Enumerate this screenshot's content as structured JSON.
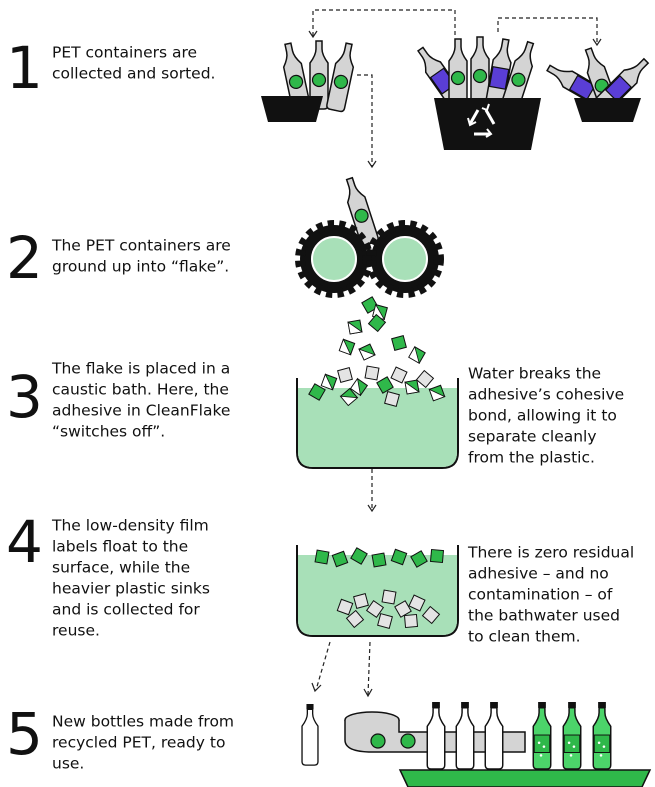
{
  "steps": [
    {
      "number": "1",
      "lines": [
        "PET containers are",
        "collected and sorted."
      ]
    },
    {
      "number": "2",
      "lines": [
        "The PET containers are",
        "ground up into “flake”."
      ]
    },
    {
      "number": "3",
      "lines": [
        "The flake is placed in a",
        "caustic bath. Here, the",
        "adhesive in CleanFlake",
        "“switches off”."
      ]
    },
    {
      "number": "4",
      "lines": [
        "The low-density film",
        "labels float to the",
        "surface, while the",
        "heavier plastic sinks",
        "and is collected for",
        "reuse."
      ]
    },
    {
      "number": "5",
      "lines": [
        "New bottles made from",
        "recycled PET, ready to",
        "use."
      ]
    }
  ],
  "notes": [
    {
      "lines": [
        "Water breaks the",
        "adhesive’s cohesive",
        "bond, allowing it to",
        "separate cleanly",
        "from the plastic."
      ]
    },
    {
      "lines": [
        "There is zero residual",
        "adhesive – and no",
        "contamination – of",
        "the bathwater used",
        "to clean them."
      ]
    }
  ]
}
